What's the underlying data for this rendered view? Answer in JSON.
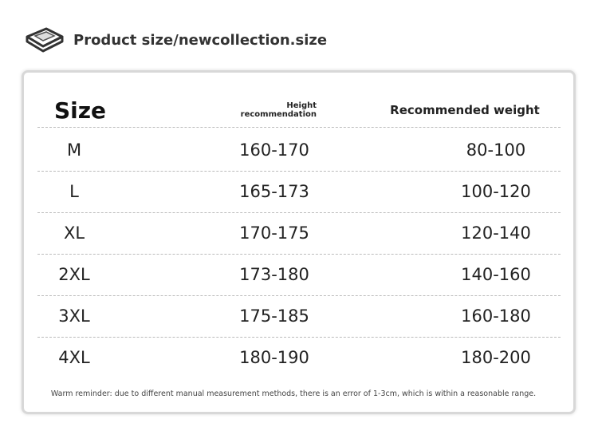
{
  "header": {
    "title": "Product size/newcollection.size"
  },
  "table": {
    "headers": [
      "Size",
      [
        "Height",
        "recommendation"
      ],
      "Recommended weight"
    ],
    "rows": [
      [
        "M",
        "160-170",
        "80-100"
      ],
      [
        "L",
        "165-173",
        "100-120"
      ],
      [
        "XL",
        "170-175",
        "120-140"
      ],
      [
        "2XL",
        "173-180",
        "140-160"
      ],
      [
        "3XL",
        "175-185",
        "160-180"
      ],
      [
        "4XL",
        "180-190",
        "180-200"
      ]
    ]
  },
  "footer": {
    "note": "Warm reminder: due to different manual measurement methods, there is an error of 1-3cm, which is within a reasonable range."
  }
}
